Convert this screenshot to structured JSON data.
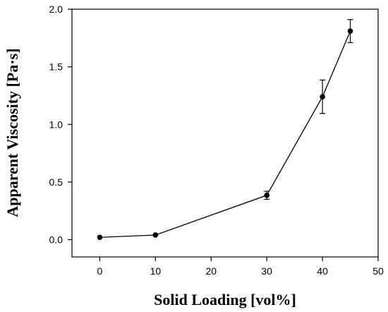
{
  "chart_data": {
    "type": "line",
    "title": "",
    "xlabel": "Solid Loading [vol%]",
    "ylabel": "Apparent Viscosity [Pa·s]",
    "xlim": [
      -5,
      50
    ],
    "ylim": [
      -0.15,
      2.0
    ],
    "xticks": [
      0,
      10,
      20,
      30,
      40,
      50
    ],
    "yticks": [
      0.0,
      0.5,
      1.0,
      1.5,
      2.0
    ],
    "xtick_labels": [
      "0",
      "10",
      "20",
      "30",
      "40",
      "50"
    ],
    "ytick_labels": [
      "0.0",
      "0.5",
      "1.0",
      "1.5",
      "2.0"
    ],
    "grid": false,
    "legend": "none",
    "line_color": "#000000",
    "series": [
      {
        "x": [
          0,
          10,
          30,
          40,
          45
        ],
        "y": [
          0.02,
          0.04,
          0.385,
          1.24,
          1.81
        ],
        "error": [
          0,
          0,
          0.035,
          0.145,
          0.1
        ]
      }
    ]
  }
}
